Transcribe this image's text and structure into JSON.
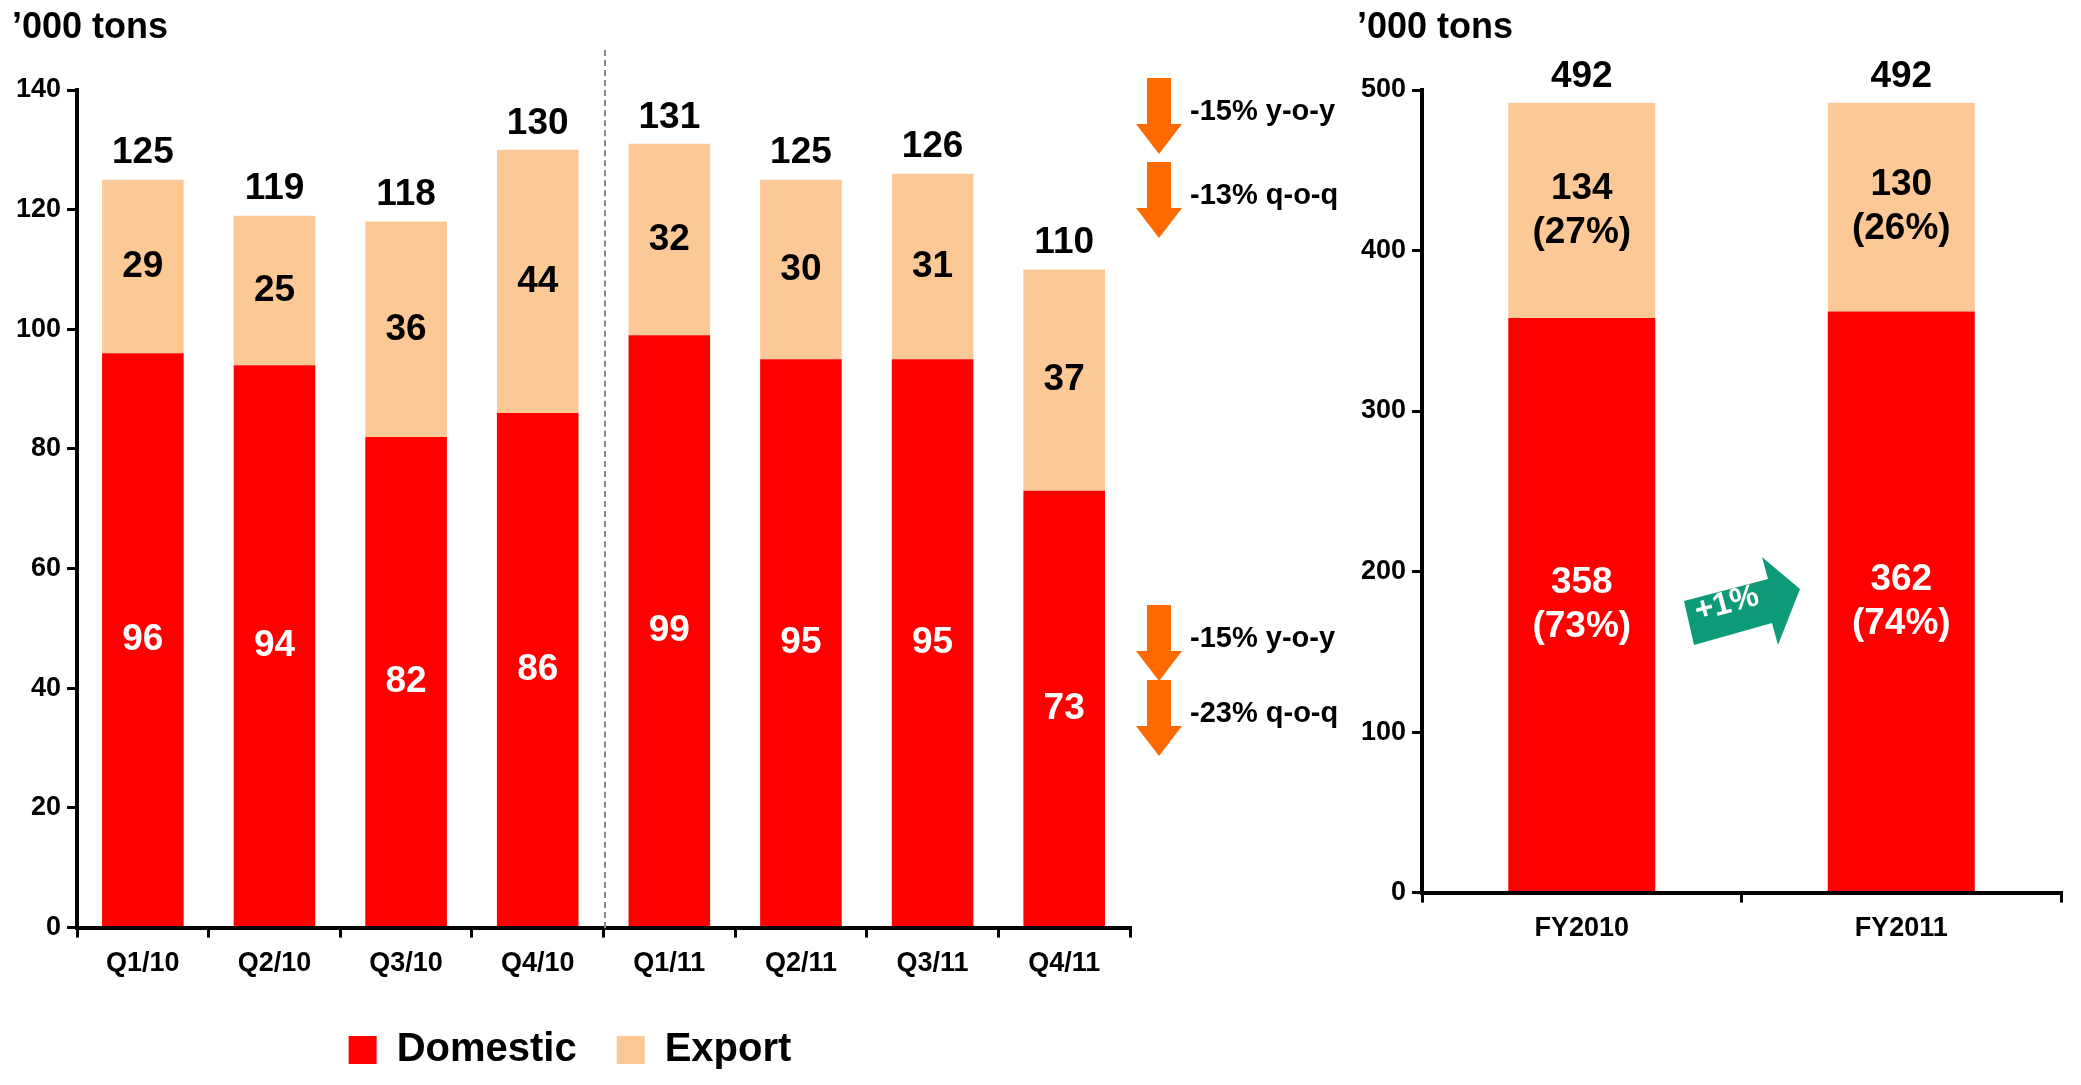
{
  "chart_data": [
    {
      "type": "bar",
      "ylabel": "’000 tons",
      "categories": [
        "Q1/10",
        "Q2/10",
        "Q3/10",
        "Q4/10",
        "Q1/11",
        "Q2/11",
        "Q3/11",
        "Q4/11"
      ],
      "series": [
        {
          "name": "Domestic",
          "color": "#ff0000",
          "values": [
            96,
            94,
            82,
            86,
            99,
            95,
            95,
            73
          ]
        },
        {
          "name": "Export",
          "color": "#fcc896",
          "values": [
            29,
            25,
            36,
            44,
            32,
            30,
            31,
            37
          ]
        }
      ],
      "stacked": true,
      "ylim": [
        0,
        140
      ],
      "yticks": [
        0,
        20,
        40,
        60,
        80,
        100,
        120,
        140
      ],
      "data_labels": true,
      "totals": [
        "125",
        "119",
        "118",
        "130",
        "131",
        "125",
        "126",
        "110"
      ],
      "legend": "bottom",
      "annotations": [
        "-15% y-o-y",
        "-13% q-o-q",
        "-15% y-o-y",
        "-23% q-o-q"
      ]
    },
    {
      "type": "bar",
      "ylabel": "’000 tons",
      "categories": [
        "FY2010",
        "FY2011"
      ],
      "series": [
        {
          "color": "#ff0000",
          "values": [
            358,
            362
          ],
          "value_labels": [
            "358\n(73%)",
            "362\n(74%)"
          ]
        },
        {
          "color": "#fcc896",
          "values": [
            134,
            130
          ],
          "value_labels": [
            "134\n(27%)",
            "130\n(26%)"
          ]
        }
      ],
      "stacked": true,
      "ylim": [
        0,
        500
      ],
      "yticks": [
        0,
        100,
        200,
        300,
        400,
        500
      ],
      "totals": [
        "492",
        "492"
      ],
      "annotations": [
        "+1%"
      ]
    }
  ]
}
